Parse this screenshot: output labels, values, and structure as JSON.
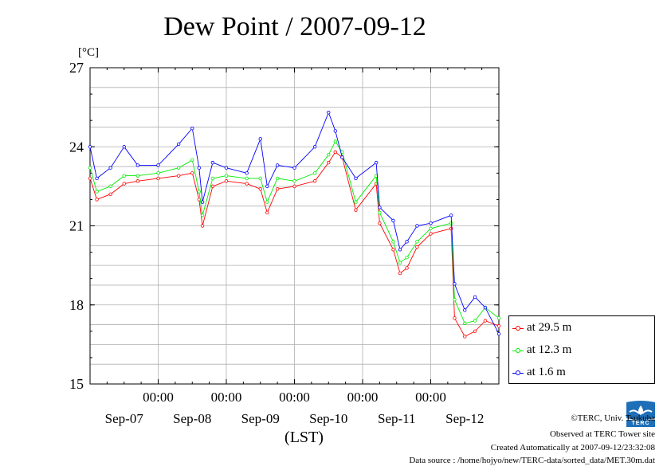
{
  "chart_data": {
    "type": "line",
    "title": "Dew Point / 2007-09-12",
    "ylabel": "[°C]",
    "xlabel": "(LST)",
    "ylim": [
      15,
      27
    ],
    "yticks": [
      "15",
      "18",
      "21",
      "24",
      "27"
    ],
    "xlim_days": [
      0,
      6
    ],
    "time_labels": [
      "00:00",
      "00:00",
      "00:00",
      "00:00",
      "00:00"
    ],
    "time_label_days": [
      1,
      2,
      3,
      4,
      5
    ],
    "date_labels": [
      "Sep-07",
      "Sep-08",
      "Sep-09",
      "Sep-10",
      "Sep-11",
      "Sep-12"
    ],
    "date_label_days": [
      0.5,
      1.5,
      2.5,
      3.5,
      4.5,
      5.5
    ],
    "vgrid_days": [
      1,
      2,
      3,
      4,
      5
    ],
    "hgrid_step": 0.75,
    "legend_location": "right, outside plot",
    "series": [
      {
        "name": "at 29.5 m",
        "color": "#ff0000",
        "days": [
          0,
          0.1,
          0.3,
          0.5,
          0.7,
          1.0,
          1.3,
          1.5,
          1.6,
          1.65,
          1.8,
          2.0,
          2.3,
          2.5,
          2.6,
          2.75,
          3.0,
          3.3,
          3.5,
          3.6,
          3.7,
          3.9,
          4.2,
          4.25,
          4.45,
          4.55,
          4.65,
          4.8,
          5.0,
          5.3,
          5.35,
          5.5,
          5.65,
          5.8,
          6.0
        ],
        "values": [
          22.8,
          22.0,
          22.2,
          22.6,
          22.7,
          22.8,
          22.9,
          23.0,
          22.0,
          21.0,
          22.5,
          22.7,
          22.6,
          22.4,
          21.5,
          22.4,
          22.5,
          22.7,
          23.4,
          23.8,
          23.6,
          21.6,
          22.6,
          21.1,
          20.1,
          19.2,
          19.4,
          20.2,
          20.7,
          20.9,
          17.5,
          16.8,
          17.0,
          17.4,
          17.2
        ]
      },
      {
        "name": "at 12.3 m",
        "color": "#00ee00",
        "days": [
          0,
          0.1,
          0.3,
          0.5,
          0.7,
          1.0,
          1.3,
          1.5,
          1.6,
          1.65,
          1.8,
          2.0,
          2.3,
          2.5,
          2.6,
          2.75,
          3.0,
          3.3,
          3.5,
          3.6,
          3.7,
          3.9,
          4.2,
          4.25,
          4.45,
          4.55,
          4.65,
          4.8,
          5.0,
          5.3,
          5.35,
          5.5,
          5.65,
          5.8,
          6.0
        ],
        "values": [
          23.2,
          22.3,
          22.5,
          22.9,
          22.9,
          23.0,
          23.2,
          23.5,
          22.3,
          21.4,
          22.8,
          22.9,
          22.8,
          22.8,
          21.9,
          22.8,
          22.7,
          23.0,
          23.7,
          24.2,
          23.8,
          21.9,
          22.9,
          21.5,
          20.4,
          19.6,
          19.8,
          20.4,
          20.9,
          21.1,
          18.2,
          17.3,
          17.4,
          17.9,
          17.5
        ]
      },
      {
        "name": "at 1.6 m",
        "color": "#0000ff",
        "days": [
          0,
          0.1,
          0.3,
          0.5,
          0.7,
          1.0,
          1.3,
          1.5,
          1.6,
          1.65,
          1.8,
          2.0,
          2.3,
          2.5,
          2.6,
          2.75,
          3.0,
          3.3,
          3.5,
          3.6,
          3.7,
          3.9,
          4.2,
          4.25,
          4.45,
          4.55,
          4.65,
          4.8,
          5.0,
          5.3,
          5.35,
          5.5,
          5.65,
          5.8,
          6.0
        ],
        "values": [
          24.0,
          22.8,
          23.2,
          24.0,
          23.3,
          23.3,
          24.1,
          24.7,
          23.2,
          21.9,
          23.4,
          23.2,
          23.0,
          24.3,
          22.5,
          23.3,
          23.2,
          24.0,
          25.3,
          24.6,
          23.6,
          22.8,
          23.4,
          21.7,
          21.2,
          20.1,
          20.4,
          21.0,
          21.1,
          21.4,
          18.8,
          17.8,
          18.3,
          17.9,
          16.9
        ]
      }
    ]
  },
  "footer": {
    "copyright": "©TERC, Univ. Tsukuba",
    "observed": "Observed at TERC Tower site",
    "created": "Created Automatically at 2007-09-12/23:32:08",
    "source": "Data source : /home/hojyo/new/TERC-data/sorted_data/MET.30m.dat",
    "logo_text": "TERC"
  }
}
